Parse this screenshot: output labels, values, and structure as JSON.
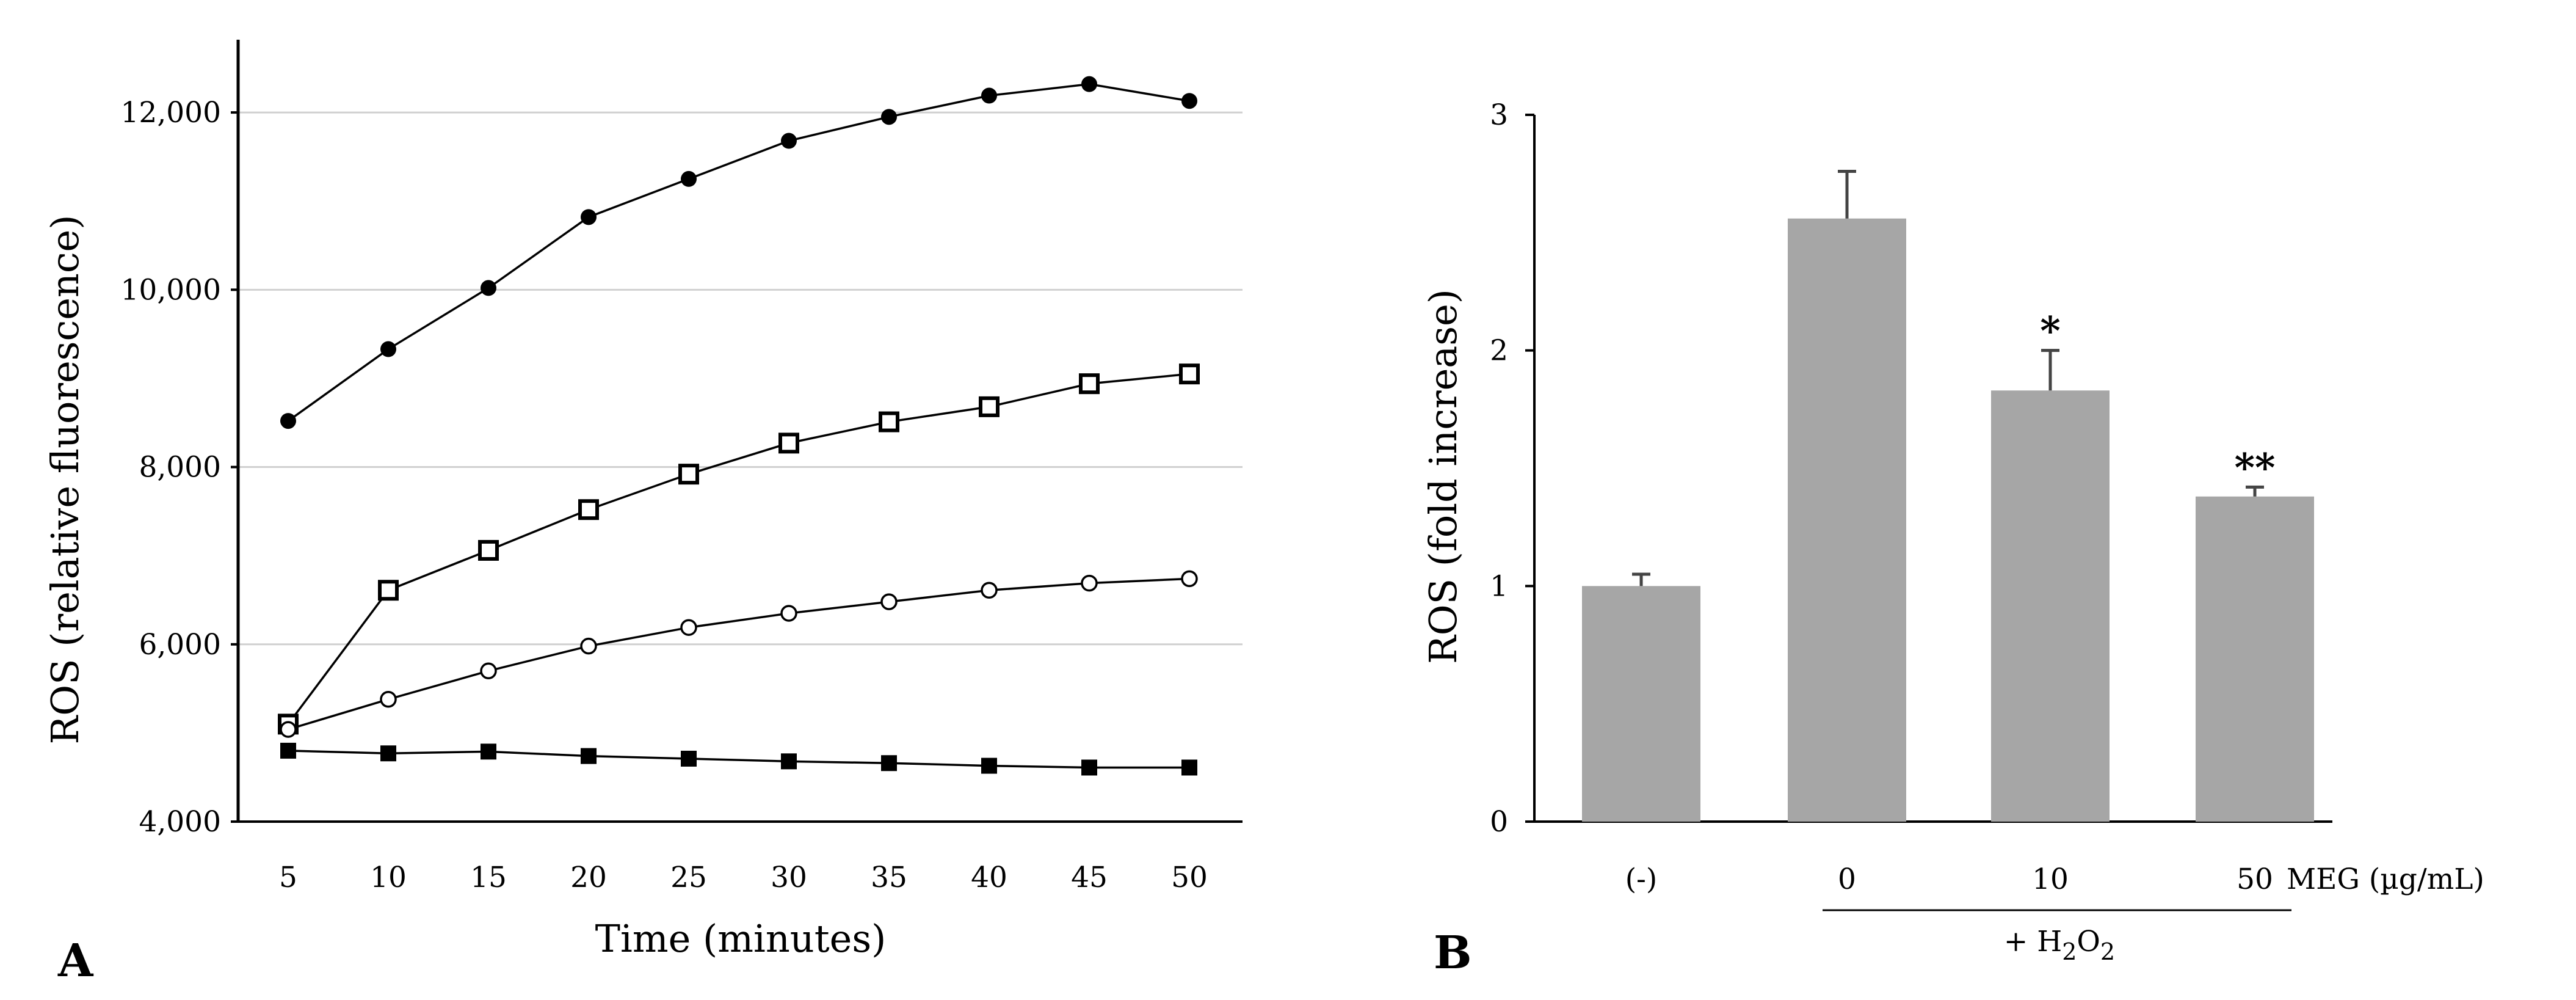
{
  "chart_data": [
    {
      "panel": "A",
      "type": "line",
      "xlabel": "Time (minutes)",
      "ylabel": "ROS (relative fluorescence)",
      "x": [
        5,
        10,
        15,
        20,
        25,
        30,
        35,
        40,
        45,
        50
      ],
      "x_tick_labels": [
        "5",
        "10",
        "15",
        "20",
        "25",
        "30",
        "35",
        "40",
        "45",
        "50"
      ],
      "ylim": [
        4000,
        12800
      ],
      "y_ticks": [
        4000,
        6000,
        8000,
        10000,
        12000
      ],
      "y_tick_labels": [
        "4,000",
        "6,000",
        "8,000",
        "10,000",
        "12,000"
      ],
      "grid": true,
      "series": [
        {
          "name": "filled-circle",
          "marker": "filled-circle",
          "values": [
            8520,
            9330,
            10020,
            10820,
            11250,
            11680,
            11950,
            12190,
            12320,
            12130
          ]
        },
        {
          "name": "open-square",
          "marker": "open-square",
          "values": [
            5100,
            6610,
            7060,
            7520,
            7920,
            8270,
            8510,
            8680,
            8940,
            9050
          ]
        },
        {
          "name": "open-circle",
          "marker": "open-circle",
          "values": [
            5040,
            5380,
            5700,
            5980,
            6190,
            6350,
            6480,
            6610,
            6690,
            6740
          ]
        },
        {
          "name": "filled-square",
          "marker": "filled-square",
          "values": [
            4800,
            4770,
            4790,
            4740,
            4710,
            4680,
            4660,
            4630,
            4610,
            4610
          ]
        }
      ]
    },
    {
      "panel": "B",
      "type": "bar",
      "ylabel": "ROS (fold increase)",
      "categories": [
        "(-)",
        "0",
        "10",
        "50"
      ],
      "values": [
        1.0,
        2.56,
        1.83,
        1.38
      ],
      "errors": [
        0.05,
        0.2,
        0.17,
        0.04
      ],
      "significance": [
        "",
        "",
        "*",
        "**"
      ],
      "ylim": [
        0,
        3
      ],
      "y_ticks": [
        0,
        1,
        2,
        3
      ],
      "y_tick_labels": [
        "0",
        "1",
        "2",
        "3"
      ],
      "bar_color": "#a6a6a6",
      "x_axis_note": "MEG (µg/mL)",
      "treatment_label": {
        "prefix": "+ H",
        "subscript": "2",
        "middle": "O",
        "subscript2": "2"
      }
    }
  ]
}
